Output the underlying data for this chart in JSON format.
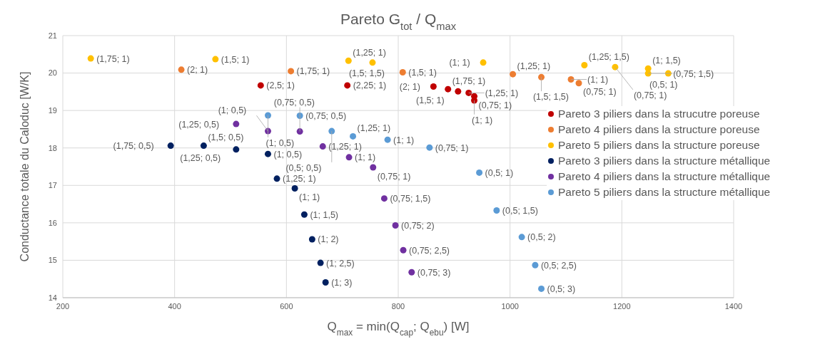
{
  "chart_data": {
    "type": "scatter",
    "title": "Pareto G$_{tot}$ / Q$_{max}$",
    "xlabel": "Q$_{max}$ = min(Q$_{cap}$; Q$_{ebu}$) [W]",
    "ylabel": "Conductance totale du Caloduc [W/K]",
    "xlim": [
      200,
      1400
    ],
    "xticks": [
      200,
      400,
      600,
      800,
      1000,
      1200,
      1400
    ],
    "ylim": [
      14,
      21
    ],
    "yticks": [
      14,
      15,
      16,
      17,
      18,
      19,
      20,
      21
    ],
    "grid": true,
    "legend": "right",
    "marker": "circle",
    "series": [
      {
        "name": "Pareto 3 piliers dans la strucutre poreuse",
        "color": "#c00000",
        "x": [
          554,
          709,
          863,
          889,
          907,
          926,
          936,
          936
        ],
        "values": [
          19.67,
          19.67,
          19.64,
          19.57,
          19.51,
          19.47,
          19.38,
          19.27
        ],
        "value_labels": [
          "(2,5; 1)",
          "(2,25; 1)",
          "(2; 1)",
          "(1,75; 1)",
          "(1,5; 1)",
          "(1,25; 1)",
          "(0,75; 1)",
          "(1; 1)"
        ]
      },
      {
        "name": "Pareto 4 piliers dans la structure poreuse",
        "color": "#ed7d31",
        "x": [
          412,
          608,
          808,
          1005,
          1056,
          1109,
          1123
        ],
        "values": [
          20.09,
          20.05,
          20.02,
          19.97,
          19.89,
          19.83,
          19.73
        ],
        "value_labels": [
          "(2; 1)",
          "(1,75; 1)",
          "(1,5; 1)",
          "(1,25; 1)",
          "(1,5; 1,5)",
          "(1; 1)",
          "(0,75; 1)"
        ]
      },
      {
        "name": "Pareto 5 piliers dans la structure poreuse",
        "color": "#ffc000",
        "x": [
          250,
          473,
          711,
          754,
          952,
          1133,
          1188,
          1247,
          1247,
          1283
        ],
        "values": [
          20.39,
          20.37,
          20.33,
          20.28,
          20.28,
          20.21,
          20.16,
          20.12,
          19.99,
          19.99
        ],
        "value_labels": [
          "(1,75; 1)",
          "(1,5; 1)",
          "(1,25; 1)",
          "(1,5; 1,5)",
          "(1; 1)",
          "(1,25; 1,5)",
          "(0,75; 1)",
          "(1; 1,5)",
          "(0,75; 1,5)",
          "(0,5; 1)"
        ]
      },
      {
        "name": "Pareto 3 piliers dans la structure métallique",
        "color": "#002060",
        "x": [
          393,
          452,
          510,
          567,
          583,
          615,
          632,
          646,
          661,
          670
        ],
        "values": [
          18.06,
          18.06,
          17.96,
          17.84,
          17.18,
          16.92,
          16.22,
          15.56,
          14.93,
          14.41
        ],
        "value_labels": [
          "(1,75; 0,5)",
          "(1,5; 0,5)",
          "(1,25; 0,5)",
          "(1; 0,5)",
          "(1,25; 1)",
          "(1; 1)",
          "(1; 1,5)",
          "(1; 2)",
          "(1; 2,5)",
          "(1; 3)"
        ]
      },
      {
        "name": "Pareto 4 piliers dans la structure métallique",
        "color": "#7030a0",
        "x": [
          510,
          567,
          624,
          665,
          712,
          755,
          775,
          795,
          809,
          824
        ],
        "values": [
          18.64,
          18.45,
          18.44,
          18.04,
          17.75,
          17.48,
          16.65,
          15.93,
          15.27,
          14.68
        ],
        "value_labels": [
          "(1,25; 0,5)",
          "(1; 0,5)",
          "(0,75; 0,5)",
          "(1,25; 1)",
          "(1; 1)",
          "(0,75; 1)",
          "(0,75; 1,5)",
          "(0,75; 2)",
          "(0,75; 2,5)",
          "(0,75; 3)"
        ]
      },
      {
        "name": "Pareto 5 piliers dans la structure métallique",
        "color": "#5b9bd5",
        "x": [
          567,
          624,
          681,
          719,
          781,
          856,
          945,
          976,
          1021,
          1045,
          1056
        ],
        "values": [
          18.87,
          18.86,
          18.45,
          18.31,
          18.22,
          18.01,
          17.34,
          16.33,
          15.62,
          14.87,
          14.24
        ],
        "value_labels": [
          "(1; 0,5)",
          "(0,75; 0,5)",
          "(0,5; 0,5)",
          "(1,25; 1)",
          "(1; 1)",
          "(0,75; 1)",
          "(0,5; 1)",
          "(0,5; 1,5)",
          "(0,5; 2)",
          "(0,5; 2,5)",
          "(0,5; 3)"
        ]
      }
    ]
  }
}
